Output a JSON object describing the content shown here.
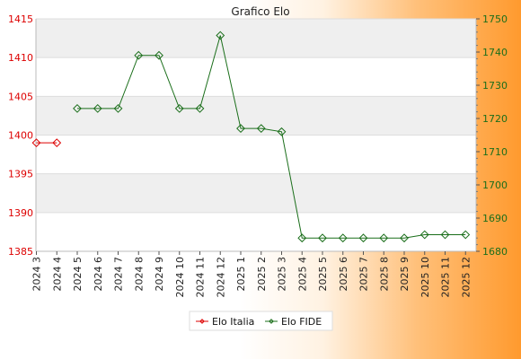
{
  "chart_data": {
    "type": "line",
    "title": "Grafico Elo",
    "categories": [
      "2024 3",
      "2024 4",
      "2024 5",
      "2024 6",
      "2024 7",
      "2024 8",
      "2024 9",
      "2024 10",
      "2024 11",
      "2024 12",
      "2025 1",
      "2025 2",
      "2025 3",
      "2025 4",
      "2025 5",
      "2025 6",
      "2025 7",
      "2025 8",
      "2025 9",
      "2025 10",
      "2025 11",
      "2025 12"
    ],
    "y_left": {
      "min": 1385,
      "max": 1415,
      "ticks": [
        1385,
        1390,
        1395,
        1400,
        1405,
        1410,
        1415
      ],
      "color": "#dd0000"
    },
    "y_right": {
      "min": 1680,
      "max": 1750,
      "ticks": [
        1680,
        1690,
        1700,
        1710,
        1720,
        1730,
        1740,
        1750
      ],
      "color": "#1a6e1a"
    },
    "grid": true,
    "legend_position": "bottom-center",
    "series": [
      {
        "name": "Elo Italia",
        "axis": "left",
        "color": "#dd0000",
        "values": [
          1399,
          1399,
          null,
          null,
          null,
          null,
          null,
          null,
          null,
          null,
          null,
          null,
          null,
          null,
          null,
          null,
          null,
          null,
          null,
          null,
          null,
          null
        ]
      },
      {
        "name": "Elo FIDE",
        "axis": "right",
        "color": "#1a6e1a",
        "values": [
          null,
          null,
          1723,
          1723,
          1723,
          1739,
          1739,
          1723,
          1723,
          1745,
          1717,
          1717,
          1716,
          1684,
          1684,
          1684,
          1684,
          1684,
          1684,
          1685,
          1685,
          1685
        ]
      }
    ]
  }
}
